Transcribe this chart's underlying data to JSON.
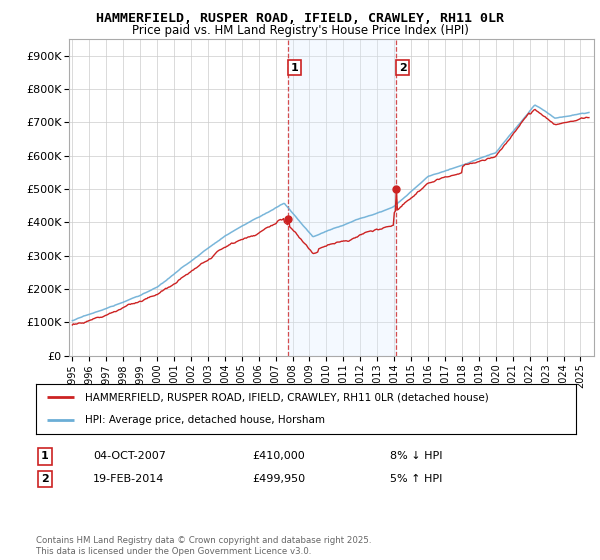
{
  "title": "HAMMERFIELD, RUSPER ROAD, IFIELD, CRAWLEY, RH11 0LR",
  "subtitle": "Price paid vs. HM Land Registry's House Price Index (HPI)",
  "legend_line1": "HAMMERFIELD, RUSPER ROAD, IFIELD, CRAWLEY, RH11 0LR (detached house)",
  "legend_line2": "HPI: Average price, detached house, Horsham",
  "annotation1_date": "04-OCT-2007",
  "annotation1_price": "£410,000",
  "annotation1_hpi": "8% ↓ HPI",
  "annotation2_date": "19-FEB-2014",
  "annotation2_price": "£499,950",
  "annotation2_hpi": "5% ↑ HPI",
  "footer": "Contains HM Land Registry data © Crown copyright and database right 2025.\nThis data is licensed under the Open Government Licence v3.0.",
  "sale1_year": 2007.75,
  "sale1_value": 410000,
  "sale2_year": 2014.12,
  "sale2_value": 499950,
  "hpi_color": "#6baed6",
  "price_color": "#cc2222",
  "shade_color": "#ddeeff",
  "vline_color": "#cc2222",
  "background_color": "#ffffff",
  "grid_color": "#cccccc",
  "ylim": [
    0,
    950000
  ],
  "xlim_start": 1994.8,
  "xlim_end": 2025.8
}
